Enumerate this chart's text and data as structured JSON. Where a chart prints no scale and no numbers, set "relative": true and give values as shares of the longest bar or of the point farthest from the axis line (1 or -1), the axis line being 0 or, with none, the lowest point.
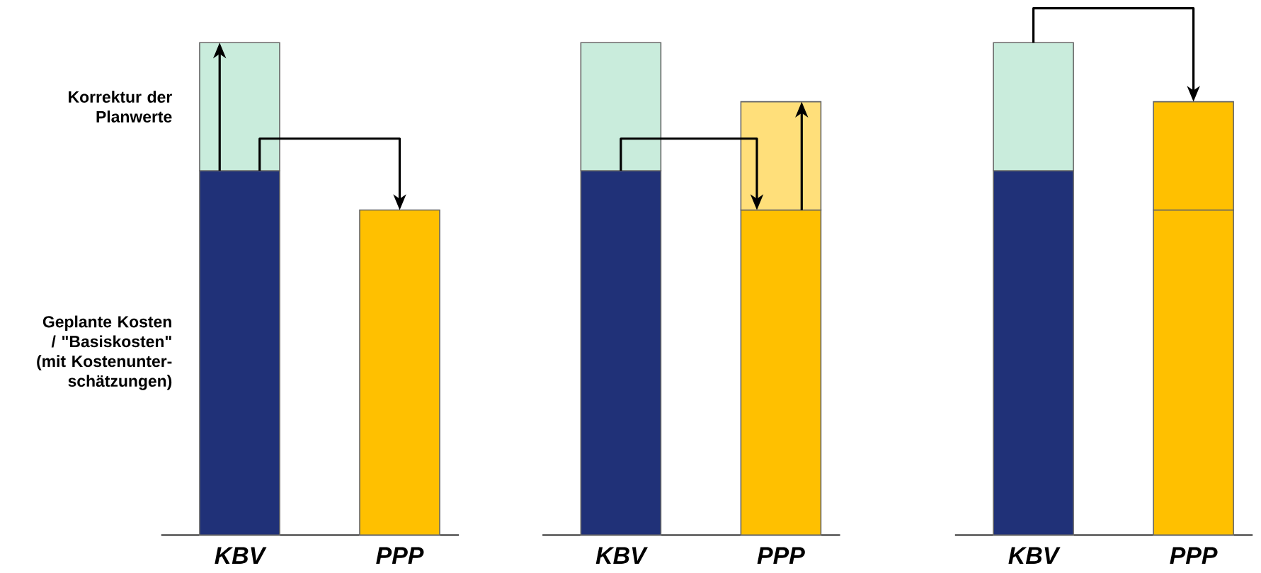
{
  "chart_data": [
    {
      "type": "bar",
      "stacked": true,
      "relative": true,
      "categories": [
        "KBV",
        "PPP"
      ],
      "series": [
        {
          "name": "Geplante Kosten / \"Basiskosten\" (mit Kostenunter-schätzungen)",
          "colors": [
            "#203178",
            "#ffc000"
          ],
          "values": [
            0.74,
            0.66
          ]
        },
        {
          "name": "Korrektur der Planwerte",
          "colors": [
            "#c9ecdc",
            null
          ],
          "values": [
            0.26,
            null
          ]
        }
      ]
    },
    {
      "type": "bar",
      "stacked": true,
      "relative": true,
      "categories": [
        "KBV",
        "PPP"
      ],
      "series": [
        {
          "colors": [
            "#203178",
            "#ffc000"
          ],
          "values": [
            0.74,
            0.66
          ]
        },
        {
          "colors": [
            "#c9ecdc",
            "#ffdf7a"
          ],
          "values": [
            0.26,
            0.22
          ]
        }
      ]
    },
    {
      "type": "bar",
      "stacked": true,
      "relative": true,
      "categories": [
        "KBV",
        "PPP"
      ],
      "series": [
        {
          "colors": [
            "#203178",
            "#ffc000"
          ],
          "values": [
            0.74,
            0.66
          ]
        },
        {
          "colors": [
            "#c9ecdc",
            "#ffc000"
          ],
          "values": [
            0.26,
            0.22
          ]
        }
      ]
    }
  ]
}
